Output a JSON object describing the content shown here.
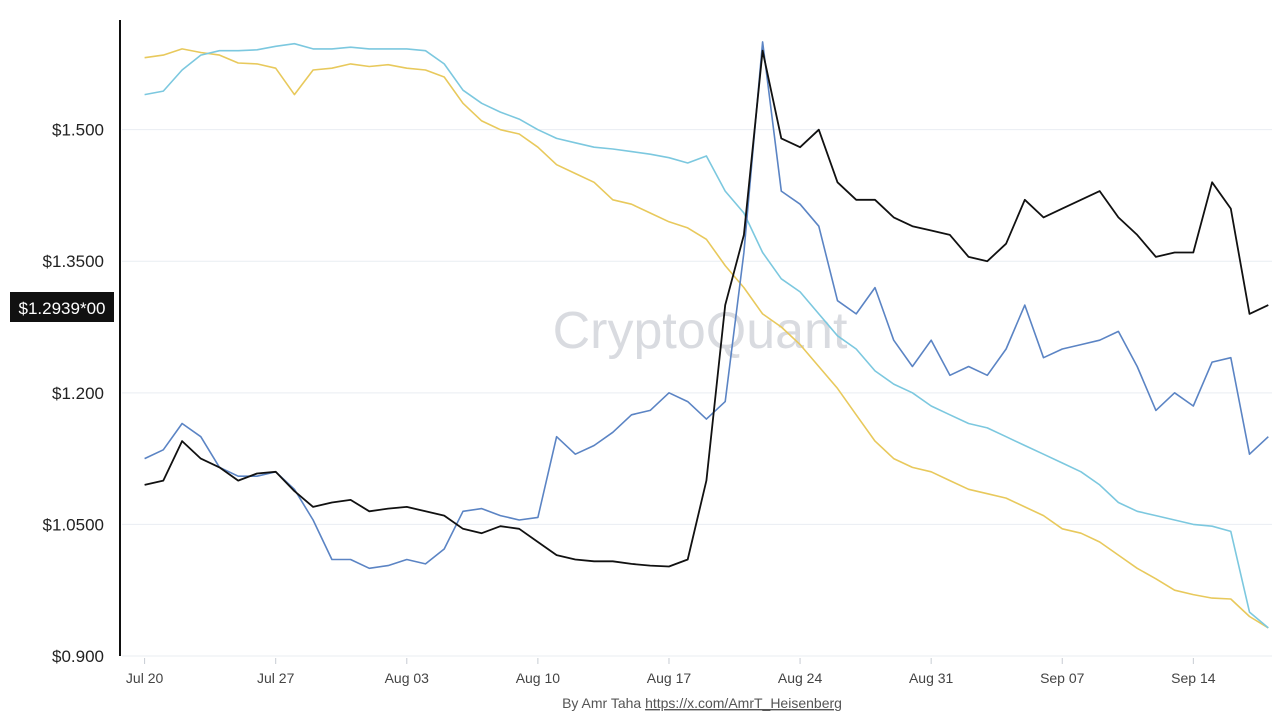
{
  "chart_data": {
    "type": "line",
    "y_ticks": [
      "$1.500",
      "$1.3500",
      "$1.200",
      "$1.0500",
      "$0.900"
    ],
    "y_tick_values": [
      1.5,
      1.35,
      1.2,
      1.05,
      0.9
    ],
    "ylim": [
      0.9,
      1.625
    ],
    "x_ticks": [
      "Jul 20",
      "Jul 27",
      "Aug 03",
      "Aug 10",
      "Aug 17",
      "Aug 24",
      "Aug 31",
      "Sep 07",
      "Sep 14"
    ],
    "x_tick_days": [
      0,
      7,
      14,
      21,
      28,
      35,
      42,
      49,
      56
    ],
    "x_day_range": [
      -1.1,
      60.2
    ],
    "current_value_label": "$1.2939*00",
    "current_value": 1.2939,
    "watermark": "CryptoQuant",
    "credit": {
      "prefix": "By Amr Taha ",
      "link": "https://x.com/AmrT_Heisenberg"
    },
    "grid": "horizontal",
    "series": [
      {
        "color": "#e8c95c",
        "points": [
          [
            0,
            1.582
          ],
          [
            1,
            1.585
          ],
          [
            2,
            1.592
          ],
          [
            3,
            1.588
          ],
          [
            4,
            1.585
          ],
          [
            5,
            1.576
          ],
          [
            6,
            1.575
          ],
          [
            7,
            1.57
          ],
          [
            8,
            1.54
          ],
          [
            9,
            1.568
          ],
          [
            10,
            1.57
          ],
          [
            11,
            1.575
          ],
          [
            12,
            1.572
          ],
          [
            13,
            1.574
          ],
          [
            14,
            1.57
          ],
          [
            15,
            1.568
          ],
          [
            16,
            1.56
          ],
          [
            17,
            1.53
          ],
          [
            18,
            1.51
          ],
          [
            19,
            1.5
          ],
          [
            20,
            1.495
          ],
          [
            21,
            1.48
          ],
          [
            22,
            1.46
          ],
          [
            23,
            1.45
          ],
          [
            24,
            1.44
          ],
          [
            25,
            1.42
          ],
          [
            26,
            1.415
          ],
          [
            27,
            1.405
          ],
          [
            28,
            1.395
          ],
          [
            29,
            1.388
          ],
          [
            30,
            1.375
          ],
          [
            31,
            1.345
          ],
          [
            32,
            1.32
          ],
          [
            33,
            1.29
          ],
          [
            34,
            1.275
          ],
          [
            35,
            1.255
          ],
          [
            36,
            1.23
          ],
          [
            37,
            1.205
          ],
          [
            38,
            1.175
          ],
          [
            39,
            1.145
          ],
          [
            40,
            1.125
          ],
          [
            41,
            1.115
          ],
          [
            42,
            1.11
          ],
          [
            43,
            1.1
          ],
          [
            44,
            1.09
          ],
          [
            45,
            1.085
          ],
          [
            46,
            1.08
          ],
          [
            47,
            1.07
          ],
          [
            48,
            1.06
          ],
          [
            49,
            1.045
          ],
          [
            50,
            1.04
          ],
          [
            51,
            1.03
          ],
          [
            52,
            1.015
          ],
          [
            53,
            1.0
          ],
          [
            54,
            0.988
          ],
          [
            55,
            0.975
          ],
          [
            56,
            0.97
          ],
          [
            57,
            0.966
          ],
          [
            58,
            0.965
          ],
          [
            59,
            0.945
          ],
          [
            60,
            0.932
          ]
        ]
      },
      {
        "color": "#7cc8df",
        "points": [
          [
            0,
            1.54
          ],
          [
            1,
            1.544
          ],
          [
            2,
            1.568
          ],
          [
            3,
            1.585
          ],
          [
            4,
            1.59
          ],
          [
            5,
            1.59
          ],
          [
            6,
            1.591
          ],
          [
            7,
            1.595
          ],
          [
            8,
            1.598
          ],
          [
            9,
            1.592
          ],
          [
            10,
            1.592
          ],
          [
            11,
            1.594
          ],
          [
            12,
            1.592
          ],
          [
            13,
            1.592
          ],
          [
            14,
            1.592
          ],
          [
            15,
            1.59
          ],
          [
            16,
            1.575
          ],
          [
            17,
            1.545
          ],
          [
            18,
            1.53
          ],
          [
            19,
            1.52
          ],
          [
            20,
            1.512
          ],
          [
            21,
            1.5
          ],
          [
            22,
            1.49
          ],
          [
            23,
            1.485
          ],
          [
            24,
            1.48
          ],
          [
            25,
            1.478
          ],
          [
            26,
            1.475
          ],
          [
            27,
            1.472
          ],
          [
            28,
            1.468
          ],
          [
            29,
            1.462
          ],
          [
            30,
            1.47
          ],
          [
            31,
            1.43
          ],
          [
            32,
            1.405
          ],
          [
            33,
            1.36
          ],
          [
            34,
            1.33
          ],
          [
            35,
            1.315
          ],
          [
            36,
            1.29
          ],
          [
            37,
            1.265
          ],
          [
            38,
            1.25
          ],
          [
            39,
            1.225
          ],
          [
            40,
            1.21
          ],
          [
            41,
            1.2
          ],
          [
            42,
            1.185
          ],
          [
            43,
            1.175
          ],
          [
            44,
            1.165
          ],
          [
            45,
            1.16
          ],
          [
            46,
            1.15
          ],
          [
            47,
            1.14
          ],
          [
            48,
            1.13
          ],
          [
            49,
            1.12
          ],
          [
            50,
            1.11
          ],
          [
            51,
            1.095
          ],
          [
            52,
            1.075
          ],
          [
            53,
            1.065
          ],
          [
            54,
            1.06
          ],
          [
            55,
            1.055
          ],
          [
            56,
            1.05
          ],
          [
            57,
            1.048
          ],
          [
            58,
            1.042
          ],
          [
            59,
            0.95
          ],
          [
            60,
            0.932
          ]
        ]
      },
      {
        "color": "#5b84c4",
        "points": [
          [
            0,
            1.125
          ],
          [
            1,
            1.135
          ],
          [
            2,
            1.165
          ],
          [
            3,
            1.15
          ],
          [
            4,
            1.115
          ],
          [
            5,
            1.105
          ],
          [
            6,
            1.105
          ],
          [
            7,
            1.11
          ],
          [
            8,
            1.09
          ],
          [
            9,
            1.055
          ],
          [
            10,
            1.01
          ],
          [
            11,
            1.01
          ],
          [
            12,
            1.0
          ],
          [
            13,
            1.003
          ],
          [
            14,
            1.01
          ],
          [
            15,
            1.005
          ],
          [
            16,
            1.022
          ],
          [
            17,
            1.065
          ],
          [
            18,
            1.068
          ],
          [
            19,
            1.06
          ],
          [
            20,
            1.055
          ],
          [
            21,
            1.058
          ],
          [
            22,
            1.15
          ],
          [
            23,
            1.13
          ],
          [
            24,
            1.14
          ],
          [
            25,
            1.155
          ],
          [
            26,
            1.175
          ],
          [
            27,
            1.18
          ],
          [
            28,
            1.2
          ],
          [
            29,
            1.19
          ],
          [
            30,
            1.17
          ],
          [
            31,
            1.19
          ],
          [
            32,
            1.36
          ],
          [
            33,
            1.6
          ],
          [
            34,
            1.43
          ],
          [
            35,
            1.415
          ],
          [
            36,
            1.39
          ],
          [
            37,
            1.305
          ],
          [
            38,
            1.29
          ],
          [
            39,
            1.32
          ],
          [
            40,
            1.26
          ],
          [
            41,
            1.23
          ],
          [
            42,
            1.26
          ],
          [
            43,
            1.22
          ],
          [
            44,
            1.23
          ],
          [
            45,
            1.22
          ],
          [
            46,
            1.25
          ],
          [
            47,
            1.3
          ],
          [
            48,
            1.24
          ],
          [
            49,
            1.25
          ],
          [
            50,
            1.255
          ],
          [
            51,
            1.26
          ],
          [
            52,
            1.27
          ],
          [
            53,
            1.23
          ],
          [
            54,
            1.18
          ],
          [
            55,
            1.2
          ],
          [
            56,
            1.185
          ],
          [
            57,
            1.235
          ],
          [
            58,
            1.24
          ],
          [
            59,
            1.13
          ],
          [
            60,
            1.15
          ]
        ]
      },
      {
        "color": "#111111",
        "points": [
          [
            0,
            1.095
          ],
          [
            1,
            1.1
          ],
          [
            2,
            1.145
          ],
          [
            3,
            1.125
          ],
          [
            4,
            1.115
          ],
          [
            5,
            1.1
          ],
          [
            6,
            1.108
          ],
          [
            7,
            1.11
          ],
          [
            8,
            1.088
          ],
          [
            9,
            1.07
          ],
          [
            10,
            1.075
          ],
          [
            11,
            1.078
          ],
          [
            12,
            1.065
          ],
          [
            13,
            1.068
          ],
          [
            14,
            1.07
          ],
          [
            15,
            1.065
          ],
          [
            16,
            1.06
          ],
          [
            17,
            1.045
          ],
          [
            18,
            1.04
          ],
          [
            19,
            1.048
          ],
          [
            20,
            1.045
          ],
          [
            21,
            1.03
          ],
          [
            22,
            1.015
          ],
          [
            23,
            1.01
          ],
          [
            24,
            1.008
          ],
          [
            25,
            1.008
          ],
          [
            26,
            1.005
          ],
          [
            27,
            1.003
          ],
          [
            28,
            1.002
          ],
          [
            29,
            1.01
          ],
          [
            30,
            1.1
          ],
          [
            31,
            1.3
          ],
          [
            32,
            1.38
          ],
          [
            33,
            1.59
          ],
          [
            34,
            1.49
          ],
          [
            35,
            1.48
          ],
          [
            36,
            1.5
          ],
          [
            37,
            1.44
          ],
          [
            38,
            1.42
          ],
          [
            39,
            1.42
          ],
          [
            40,
            1.4
          ],
          [
            41,
            1.39
          ],
          [
            42,
            1.385
          ],
          [
            43,
            1.38
          ],
          [
            44,
            1.355
          ],
          [
            45,
            1.35
          ],
          [
            46,
            1.37
          ],
          [
            47,
            1.42
          ],
          [
            48,
            1.4
          ],
          [
            49,
            1.41
          ],
          [
            50,
            1.42
          ],
          [
            51,
            1.43
          ],
          [
            52,
            1.4
          ],
          [
            53,
            1.38
          ],
          [
            54,
            1.355
          ],
          [
            55,
            1.36
          ],
          [
            56,
            1.36
          ],
          [
            57,
            1.44
          ],
          [
            58,
            1.41
          ],
          [
            59,
            1.29
          ],
          [
            60,
            1.3
          ]
        ]
      }
    ]
  }
}
